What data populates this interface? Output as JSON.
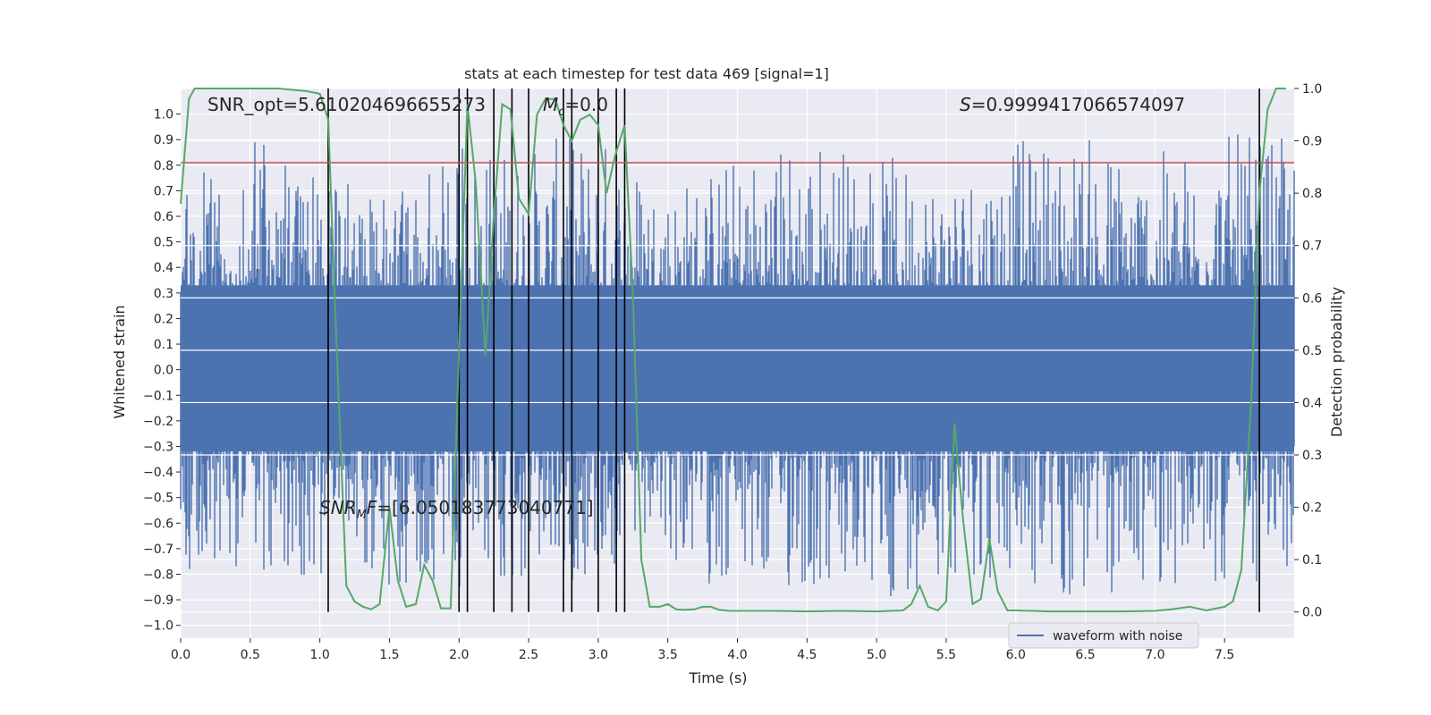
{
  "chart_data": {
    "type": "line",
    "title": "stats at each timestep for test data 469 [signal=1]",
    "xlabel": "Time (s)",
    "ylabel_left": "Whitened strain",
    "ylabel_right": "Detection probability",
    "xlim": [
      0,
      8
    ],
    "ylim_left": [
      -1.05,
      1.1
    ],
    "ylim_right": [
      -0.05,
      1.0
    ],
    "x_ticks": [
      0.0,
      0.5,
      1.0,
      1.5,
      2.0,
      2.5,
      3.0,
      3.5,
      4.0,
      4.5,
      5.0,
      5.5,
      6.0,
      6.5,
      7.0,
      7.5
    ],
    "x_tick_labels": [
      "0.0",
      "0.5",
      "1.0",
      "1.5",
      "2.0",
      "2.5",
      "3.0",
      "3.5",
      "4.0",
      "4.5",
      "5.0",
      "5.5",
      "6.0",
      "6.5",
      "7.0",
      "7.5"
    ],
    "y_left_ticks": [
      1.0,
      0.9,
      0.8,
      0.7,
      0.6,
      0.5,
      0.4,
      0.3,
      0.2,
      0.1,
      0.0,
      -0.1,
      -0.2,
      -0.3,
      -0.4,
      -0.5,
      -0.6,
      -0.7,
      -0.8,
      -0.9,
      -1.0
    ],
    "y_left_tick_labels": [
      "1.0",
      "0.9",
      "0.8",
      "0.7",
      "0.6",
      "0.5",
      "0.4",
      "0.3",
      "0.2",
      "0.1",
      "0.0",
      "−0.1",
      "−0.2",
      "−0.3",
      "−0.4",
      "−0.5",
      "−0.6",
      "−0.7",
      "−0.8",
      "−0.9",
      "−1.0"
    ],
    "y_right_ticks": [
      1.0,
      0.9,
      0.8,
      0.7,
      0.6,
      0.5,
      0.4,
      0.3,
      0.2,
      0.1,
      0.0
    ],
    "y_right_tick_labels": [
      "1.0",
      "0.9",
      "0.8",
      "0.7",
      "0.6",
      "0.5",
      "0.4",
      "0.3",
      "0.2",
      "0.1",
      "0.0"
    ],
    "grid": true,
    "legend": {
      "location": "lower-right",
      "entries": [
        "waveform with noise"
      ]
    },
    "annotations": {
      "snr_opt": "SNR_opt=5.610204696655273",
      "mc_symbol": "M",
      "mc_sub": "c",
      "mc_value": "=0.0",
      "s_symbol": "S",
      "s_value": "=0.9999417066574097",
      "snr_mf_symbol": "SNR",
      "snr_mf_sub": "M",
      "snr_mf_f": "F",
      "snr_mf_value": "=[6.050183773040771]"
    },
    "threshold": {
      "axis": "left",
      "y": 0.81,
      "color": "#c44e52"
    },
    "detection_times": [
      1.06,
      2.0,
      2.06,
      2.25,
      2.38,
      2.5,
      2.75,
      2.81,
      3.0,
      3.13,
      3.19,
      7.75
    ],
    "series": [
      {
        "name": "waveform with noise",
        "axis": "left",
        "color": "#4c72b0",
        "x": [
          0.0,
          0.5,
          1.0,
          1.5,
          2.0,
          2.5,
          3.0,
          3.5,
          4.0,
          4.5,
          5.0,
          5.5,
          6.0,
          6.5,
          7.0,
          7.5,
          8.0
        ],
        "y_max": [
          0.72,
          0.92,
          0.8,
          0.66,
          0.9,
          0.88,
          0.95,
          0.74,
          0.85,
          0.95,
          0.85,
          0.79,
          0.9,
          0.93,
          0.85,
          0.93,
          0.9
        ],
        "y_min": [
          -0.78,
          -0.78,
          -0.83,
          -0.86,
          -0.86,
          -0.88,
          -0.82,
          -0.76,
          -0.9,
          -0.9,
          -0.95,
          -0.79,
          -0.88,
          -0.95,
          -0.85,
          -0.86,
          -0.85
        ]
      },
      {
        "axis": "right",
        "color": "#55a868",
        "x": [
          0.0,
          0.06,
          0.1,
          0.2,
          0.3,
          0.5,
          0.7,
          0.9,
          1.0,
          1.06,
          1.12,
          1.19,
          1.25,
          1.31,
          1.37,
          1.43,
          1.5,
          1.56,
          1.62,
          1.69,
          1.75,
          1.81,
          1.87,
          1.94,
          2.0,
          2.06,
          2.12,
          2.19,
          2.25,
          2.31,
          2.37,
          2.43,
          2.5,
          2.56,
          2.62,
          2.69,
          2.75,
          2.81,
          2.87,
          2.94,
          3.0,
          3.06,
          3.12,
          3.19,
          3.25,
          3.31,
          3.37,
          3.44,
          3.5,
          3.56,
          3.62,
          3.69,
          3.75,
          3.81,
          3.87,
          3.94,
          4.0,
          4.25,
          4.5,
          4.75,
          5.0,
          5.19,
          5.25,
          5.31,
          5.37,
          5.44,
          5.5,
          5.56,
          5.62,
          5.69,
          5.75,
          5.81,
          5.87,
          5.94,
          6.0,
          6.12,
          6.25,
          6.5,
          6.75,
          7.0,
          7.12,
          7.25,
          7.37,
          7.5,
          7.56,
          7.62,
          7.69,
          7.75,
          7.81,
          7.87,
          7.94
        ],
        "y": [
          0.78,
          0.98,
          1.0,
          1.0,
          1.0,
          1.0,
          1.0,
          0.995,
          0.99,
          0.94,
          0.51,
          0.05,
          0.02,
          0.01,
          0.005,
          0.015,
          0.2,
          0.06,
          0.01,
          0.015,
          0.09,
          0.06,
          0.007,
          0.007,
          0.5,
          0.97,
          0.82,
          0.49,
          0.76,
          0.97,
          0.96,
          0.79,
          0.76,
          0.95,
          0.98,
          0.98,
          0.93,
          0.9,
          0.94,
          0.95,
          0.93,
          0.8,
          0.87,
          0.93,
          0.6,
          0.1,
          0.01,
          0.01,
          0.015,
          0.005,
          0.004,
          0.005,
          0.01,
          0.01,
          0.004,
          0.002,
          0.002,
          0.002,
          0.001,
          0.002,
          0.001,
          0.003,
          0.015,
          0.05,
          0.01,
          0.003,
          0.02,
          0.36,
          0.18,
          0.015,
          0.025,
          0.14,
          0.04,
          0.003,
          0.003,
          0.002,
          0.001,
          0.001,
          0.001,
          0.002,
          0.005,
          0.01,
          0.003,
          0.01,
          0.02,
          0.08,
          0.4,
          0.8,
          0.96,
          1.0,
          1.0
        ]
      }
    ]
  }
}
